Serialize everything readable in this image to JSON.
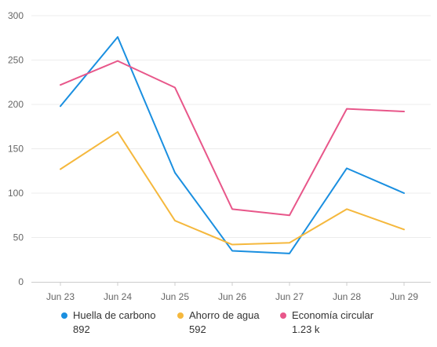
{
  "chart_data": {
    "type": "line",
    "categories": [
      "Jun 23",
      "Jun 24",
      "Jun 25",
      "Jun 26",
      "Jun 27",
      "Jun 28",
      "Jun 29"
    ],
    "ylim": [
      0,
      300
    ],
    "yticks": [
      0,
      50,
      100,
      150,
      200,
      250,
      300
    ],
    "grid": true,
    "legend_position": "bottom",
    "series": [
      {
        "name": "Huella de carbono",
        "total": "892",
        "color": "#1a8fe0",
        "values": [
          198,
          276,
          123,
          35,
          32,
          128,
          100
        ]
      },
      {
        "name": "Ahorro de agua",
        "total": "592",
        "color": "#f5b83d",
        "values": [
          127,
          169,
          69,
          42,
          44,
          82,
          59
        ]
      },
      {
        "name": "Economía circular",
        "total": "1.23 k",
        "color": "#e8578a",
        "values": [
          222,
          249,
          219,
          82,
          75,
          195,
          192
        ]
      }
    ]
  }
}
